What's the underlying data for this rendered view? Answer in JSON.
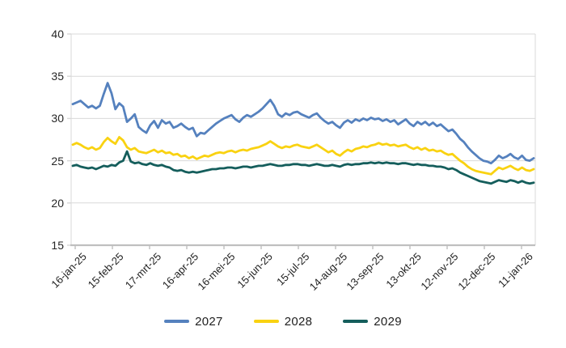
{
  "chart_data": {
    "type": "line",
    "title": "",
    "xlabel": "",
    "ylabel": "",
    "ylim": [
      15,
      40
    ],
    "y_ticks": [
      15,
      20,
      25,
      30,
      35,
      40
    ],
    "grid": "horizontal",
    "legend_position": "bottom",
    "x_tick_labels": [
      "16-jan-25",
      "15-feb-25",
      "17-mrt-25",
      "16-apr-25",
      "16-mei-25",
      "15-jun-25",
      "15-jul-25",
      "14-aug-25",
      "13-sep-25",
      "13-okt-25",
      "12-nov-25",
      "12-dec-25",
      "11-jan-26"
    ],
    "series": [
      {
        "name": "2027",
        "color": "#5581BE",
        "values": [
          31.7,
          31.9,
          32.1,
          31.7,
          31.3,
          31.5,
          31.2,
          31.5,
          32.9,
          34.2,
          33.0,
          31.1,
          31.8,
          31.4,
          29.6,
          30.0,
          30.5,
          29.0,
          28.6,
          28.3,
          29.2,
          29.7,
          28.9,
          29.8,
          29.4,
          29.6,
          28.9,
          29.1,
          29.4,
          29.0,
          28.7,
          28.9,
          27.9,
          28.3,
          28.2,
          28.6,
          29.0,
          29.4,
          29.7,
          30.0,
          30.2,
          30.4,
          29.9,
          29.6,
          30.1,
          30.4,
          30.2,
          30.5,
          30.8,
          31.2,
          31.7,
          32.2,
          31.5,
          30.5,
          30.2,
          30.6,
          30.4,
          30.7,
          30.8,
          30.5,
          30.3,
          30.1,
          30.4,
          30.6,
          30.1,
          29.7,
          29.4,
          29.6,
          29.2,
          28.9,
          29.5,
          29.8,
          29.5,
          29.9,
          29.7,
          30.0,
          29.8,
          30.1,
          29.9,
          30.0,
          29.7,
          29.9,
          29.6,
          29.8,
          29.3,
          29.6,
          29.9,
          29.4,
          29.1,
          29.6,
          29.3,
          29.6,
          29.2,
          29.5,
          29.1,
          29.3,
          28.9,
          28.5,
          28.7,
          28.2,
          27.6,
          27.2,
          26.6,
          26.1,
          25.7,
          25.3,
          25.0,
          24.9,
          24.7,
          25.1,
          25.6,
          25.3,
          25.5,
          25.8,
          25.4,
          25.2,
          25.6,
          25.1,
          25.0,
          25.3
        ]
      },
      {
        "name": "2028",
        "color": "#F9D211",
        "values": [
          26.9,
          27.1,
          26.9,
          26.6,
          26.4,
          26.6,
          26.3,
          26.5,
          27.2,
          27.7,
          27.3,
          27.0,
          27.8,
          27.4,
          26.6,
          26.3,
          26.5,
          26.1,
          26.0,
          25.9,
          26.1,
          26.3,
          26.0,
          26.2,
          25.9,
          26.0,
          25.7,
          25.8,
          25.5,
          25.6,
          25.3,
          25.5,
          25.2,
          25.4,
          25.6,
          25.5,
          25.7,
          25.9,
          26.0,
          25.9,
          26.1,
          26.2,
          26.0,
          26.2,
          26.3,
          26.2,
          26.4,
          26.5,
          26.6,
          26.8,
          27.0,
          27.3,
          27.0,
          26.7,
          26.5,
          26.7,
          26.6,
          26.8,
          26.9,
          26.7,
          26.6,
          26.5,
          26.7,
          26.9,
          26.6,
          26.3,
          26.0,
          26.2,
          25.8,
          25.6,
          26.0,
          26.3,
          26.1,
          26.4,
          26.5,
          26.7,
          26.6,
          26.8,
          26.9,
          27.1,
          26.9,
          27.0,
          26.8,
          26.9,
          26.7,
          26.8,
          26.9,
          26.6,
          26.4,
          26.6,
          26.3,
          26.5,
          26.2,
          26.3,
          26.1,
          26.2,
          25.9,
          25.7,
          25.8,
          25.4,
          25.0,
          24.7,
          24.3,
          24.0,
          23.8,
          23.7,
          23.6,
          23.5,
          23.4,
          23.8,
          24.2,
          24.0,
          24.2,
          24.4,
          24.1,
          23.9,
          24.2,
          23.9,
          23.8,
          24.0
        ]
      },
      {
        "name": "2029",
        "color": "#155E5C",
        "values": [
          24.4,
          24.5,
          24.3,
          24.2,
          24.1,
          24.2,
          24.0,
          24.2,
          24.4,
          24.3,
          24.5,
          24.4,
          24.8,
          25.0,
          26.1,
          24.9,
          24.7,
          24.8,
          24.6,
          24.5,
          24.7,
          24.5,
          24.4,
          24.5,
          24.3,
          24.2,
          23.9,
          23.8,
          23.9,
          23.7,
          23.6,
          23.7,
          23.6,
          23.7,
          23.8,
          23.9,
          24.0,
          24.0,
          24.1,
          24.1,
          24.2,
          24.2,
          24.1,
          24.2,
          24.3,
          24.3,
          24.2,
          24.3,
          24.4,
          24.4,
          24.5,
          24.6,
          24.5,
          24.4,
          24.4,
          24.5,
          24.5,
          24.6,
          24.6,
          24.5,
          24.5,
          24.4,
          24.5,
          24.6,
          24.5,
          24.4,
          24.4,
          24.5,
          24.4,
          24.3,
          24.5,
          24.6,
          24.5,
          24.6,
          24.6,
          24.7,
          24.7,
          24.8,
          24.7,
          24.8,
          24.7,
          24.8,
          24.7,
          24.7,
          24.6,
          24.7,
          24.7,
          24.6,
          24.5,
          24.6,
          24.5,
          24.5,
          24.4,
          24.4,
          24.3,
          24.3,
          24.2,
          24.0,
          24.1,
          23.9,
          23.6,
          23.4,
          23.2,
          23.0,
          22.8,
          22.6,
          22.5,
          22.4,
          22.3,
          22.5,
          22.7,
          22.6,
          22.5,
          22.7,
          22.6,
          22.4,
          22.6,
          22.4,
          22.3,
          22.4
        ]
      }
    ]
  },
  "colors": {
    "background": "#FFFFFF",
    "gridline": "#D9D9D9",
    "axis_line": "#BFBFBF",
    "tick_text": "#262626"
  }
}
